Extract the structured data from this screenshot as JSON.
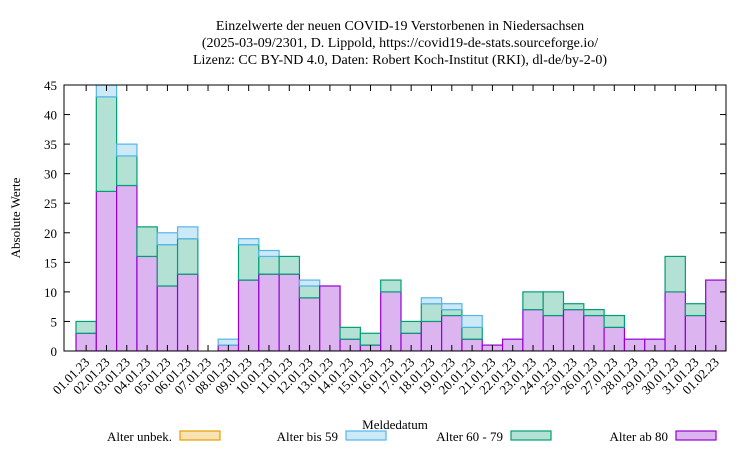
{
  "chart_data": {
    "type": "bar",
    "stacked": true,
    "title_lines": [
      "Einzelwerte der neuen COVID-19 Verstorbenen in Niedersachsen",
      "(2025-03-09/2301, D. Lippold, https://covid19-de-stats.sourceforge.io/",
      "Lizenz: CC BY-ND 4.0, Daten: Robert Koch-Institut (RKI), dl-de/by-2-0)"
    ],
    "xlabel": "Meldedatum",
    "ylabel": "Absolute Werte",
    "ylim": [
      0,
      45
    ],
    "yticks": [
      "0",
      "5",
      "10",
      "15",
      "20",
      "25",
      "30",
      "35",
      "40",
      "45"
    ],
    "grid": false,
    "legend_position": "bottom",
    "categories": [
      "01.01.23",
      "02.01.23",
      "03.01.23",
      "04.01.23",
      "05.01.23",
      "06.01.23",
      "07.01.23",
      "08.01.23",
      "09.01.23",
      "10.01.23",
      "11.01.23",
      "12.01.23",
      "13.01.23",
      "14.01.23",
      "15.01.23",
      "16.01.23",
      "17.01.23",
      "18.01.23",
      "19.01.23",
      "20.01.23",
      "21.01.23",
      "22.01.23",
      "23.01.23",
      "24.01.23",
      "25.01.23",
      "26.01.23",
      "27.01.23",
      "28.01.23",
      "29.01.23",
      "30.01.23",
      "31.01.23",
      "01.02.23"
    ],
    "series": [
      {
        "name": "Alter ab 80",
        "color": "#9400d3",
        "fill": "#dcb4f0",
        "values": [
          3,
          27,
          28,
          16,
          11,
          13,
          0,
          1,
          12,
          13,
          13,
          9,
          11,
          2,
          1,
          10,
          3,
          5,
          6,
          2,
          1,
          2,
          7,
          6,
          7,
          6,
          4,
          2,
          2,
          10,
          6,
          12
        ]
      },
      {
        "name": "Alter 60 - 79",
        "color": "#009e73",
        "fill": "#b3e2d5",
        "values": [
          2,
          16,
          5,
          5,
          7,
          6,
          0,
          0,
          6,
          3,
          3,
          2,
          0,
          2,
          2,
          2,
          2,
          3,
          1,
          2,
          0,
          0,
          3,
          4,
          1,
          1,
          2,
          0,
          0,
          6,
          2,
          0
        ]
      },
      {
        "name": "Alter bis 59",
        "color": "#56b4e9",
        "fill": "#cce9f8",
        "values": [
          0,
          2,
          2,
          0,
          2,
          2,
          0,
          1,
          1,
          1,
          0,
          1,
          0,
          0,
          0,
          0,
          0,
          1,
          1,
          2,
          0,
          0,
          0,
          0,
          0,
          0,
          0,
          0,
          0,
          0,
          0,
          0
        ]
      },
      {
        "name": "Alter unbek.",
        "color": "#e69f00",
        "fill": "#f8e2b3",
        "values": [
          0,
          0,
          0,
          0,
          0,
          0,
          0,
          0,
          0,
          0,
          0,
          0,
          0,
          0,
          0,
          0,
          0,
          0,
          0,
          0,
          0,
          0,
          0,
          0,
          0,
          0,
          0,
          0,
          0,
          0,
          0,
          0
        ]
      }
    ],
    "legend_order": [
      "Alter unbek.",
      "Alter bis 59",
      "Alter 60 - 79",
      "Alter ab 80"
    ]
  }
}
